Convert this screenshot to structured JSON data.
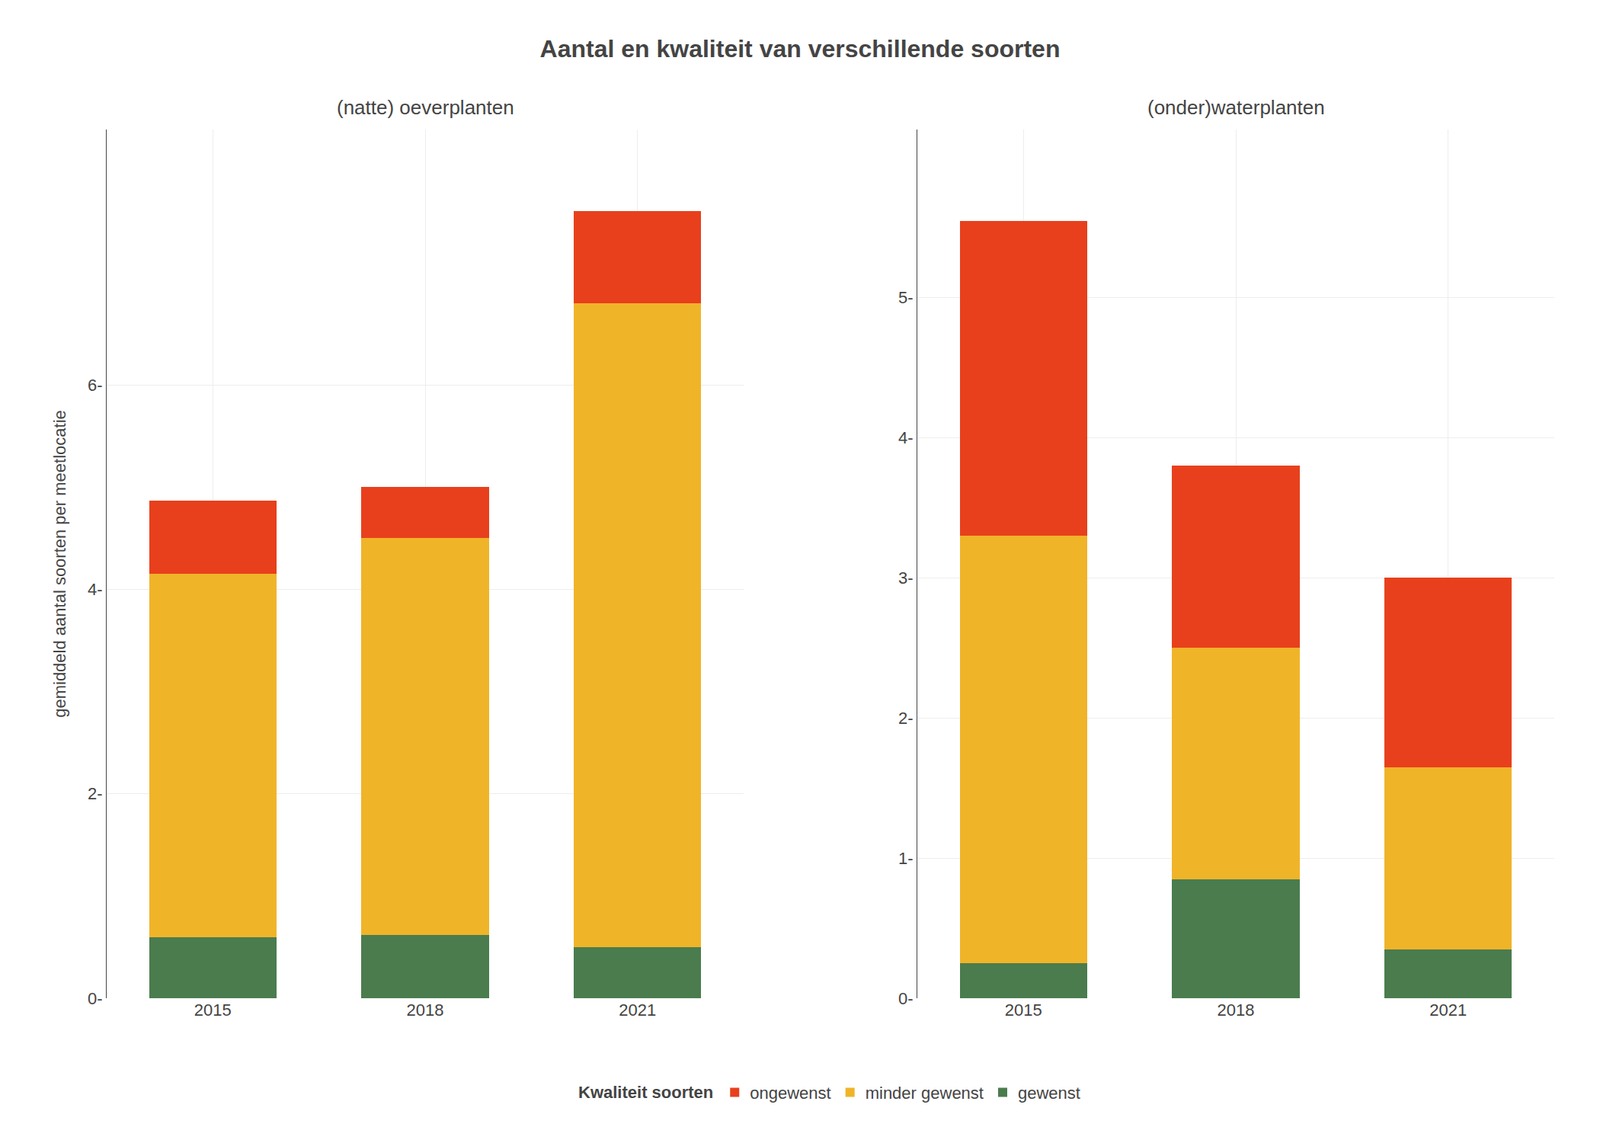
{
  "title": "Aantal en kwaliteit van verschillende soorten",
  "legend_title": "Kwaliteit soorten",
  "legend": "bottom",
  "chart_data": [
    {
      "type": "bar",
      "stacked": true,
      "grid": true,
      "title": "(natte) oeverplanten",
      "ylabel": "gemiddeld aantal soorten per meetlocatie",
      "categories": [
        "2015",
        "2018",
        "2021"
      ],
      "series": [
        {
          "name": "gewenst",
          "color": "#4a7c4e",
          "values": [
            0.6,
            0.62,
            0.5
          ]
        },
        {
          "name": "minder gewenst",
          "color": "#f0b429",
          "values": [
            3.55,
            3.88,
            6.3
          ]
        },
        {
          "name": "ongewenst",
          "color": "#e8401c",
          "values": [
            0.72,
            0.5,
            0.9
          ]
        }
      ],
      "ylim": [
        0,
        8.5
      ],
      "yticks": [
        {
          "value": 0,
          "label": "0-"
        },
        {
          "value": 2,
          "label": "2-"
        },
        {
          "value": 4,
          "label": "4-"
        },
        {
          "value": 6,
          "label": "6-"
        }
      ]
    },
    {
      "type": "bar",
      "stacked": true,
      "grid": true,
      "title": "(onder)waterplanten",
      "categories": [
        "2015",
        "2018",
        "2021"
      ],
      "series": [
        {
          "name": "gewenst",
          "color": "#4a7c4e",
          "values": [
            0.25,
            0.85,
            0.35
          ]
        },
        {
          "name": "minder gewenst",
          "color": "#f0b429",
          "values": [
            3.05,
            1.65,
            1.3
          ]
        },
        {
          "name": "ongewenst",
          "color": "#e8401c",
          "values": [
            2.25,
            1.3,
            1.35
          ]
        }
      ],
      "ylim": [
        0,
        6.2
      ],
      "yticks": [
        {
          "value": 0,
          "label": "0-"
        },
        {
          "value": 1,
          "label": "1-"
        },
        {
          "value": 2,
          "label": "2-"
        },
        {
          "value": 3,
          "label": "3-"
        },
        {
          "value": 4,
          "label": "4-"
        },
        {
          "value": 5,
          "label": "5-"
        }
      ]
    }
  ]
}
